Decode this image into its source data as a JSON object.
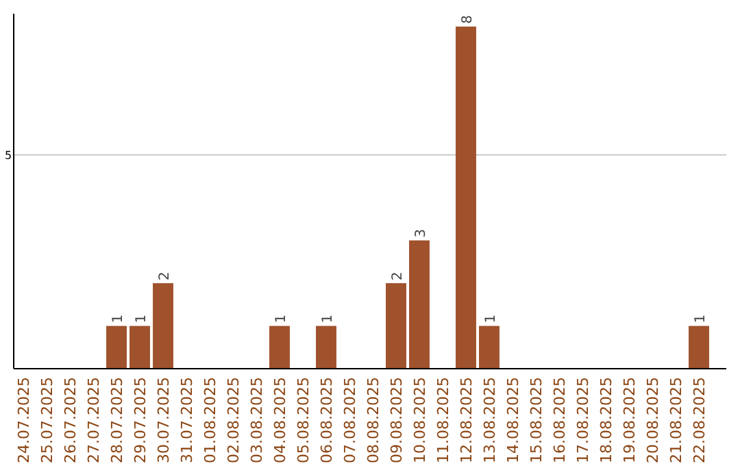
{
  "chart_data": {
    "type": "bar",
    "categories": [
      "24.07.2025",
      "25.07.2025",
      "26.07.2025",
      "27.07.2025",
      "28.07.2025",
      "29.07.2025",
      "30.07.2025",
      "31.07.2025",
      "01.08.2025",
      "02.08.2025",
      "03.08.2025",
      "04.08.2025",
      "05.08.2025",
      "06.08.2025",
      "07.08.2025",
      "08.08.2025",
      "09.08.2025",
      "10.08.2025",
      "11.08.2025",
      "12.08.2025",
      "13.08.2025",
      "14.08.2025",
      "15.08.2025",
      "16.08.2025",
      "17.08.2025",
      "18.08.2025",
      "19.08.2025",
      "20.08.2025",
      "21.08.2025",
      "22.08.2025"
    ],
    "values": [
      0,
      0,
      0,
      0,
      1,
      1,
      2,
      0,
      0,
      0,
      0,
      1,
      0,
      1,
      0,
      0,
      2,
      3,
      0,
      8,
      1,
      0,
      0,
      0,
      0,
      0,
      0,
      0,
      0,
      1
    ],
    "value_labels": [
      null,
      null,
      null,
      null,
      "1",
      "1",
      "2",
      null,
      null,
      null,
      null,
      "1",
      null,
      "1",
      null,
      null,
      "2",
      "3",
      null,
      "8",
      "1",
      null,
      null,
      null,
      null,
      null,
      null,
      null,
      null,
      "1"
    ],
    "color": "#a0522d",
    "ylim": [
      0,
      8.3
    ],
    "yticks": [
      5
    ],
    "grid": "y"
  }
}
